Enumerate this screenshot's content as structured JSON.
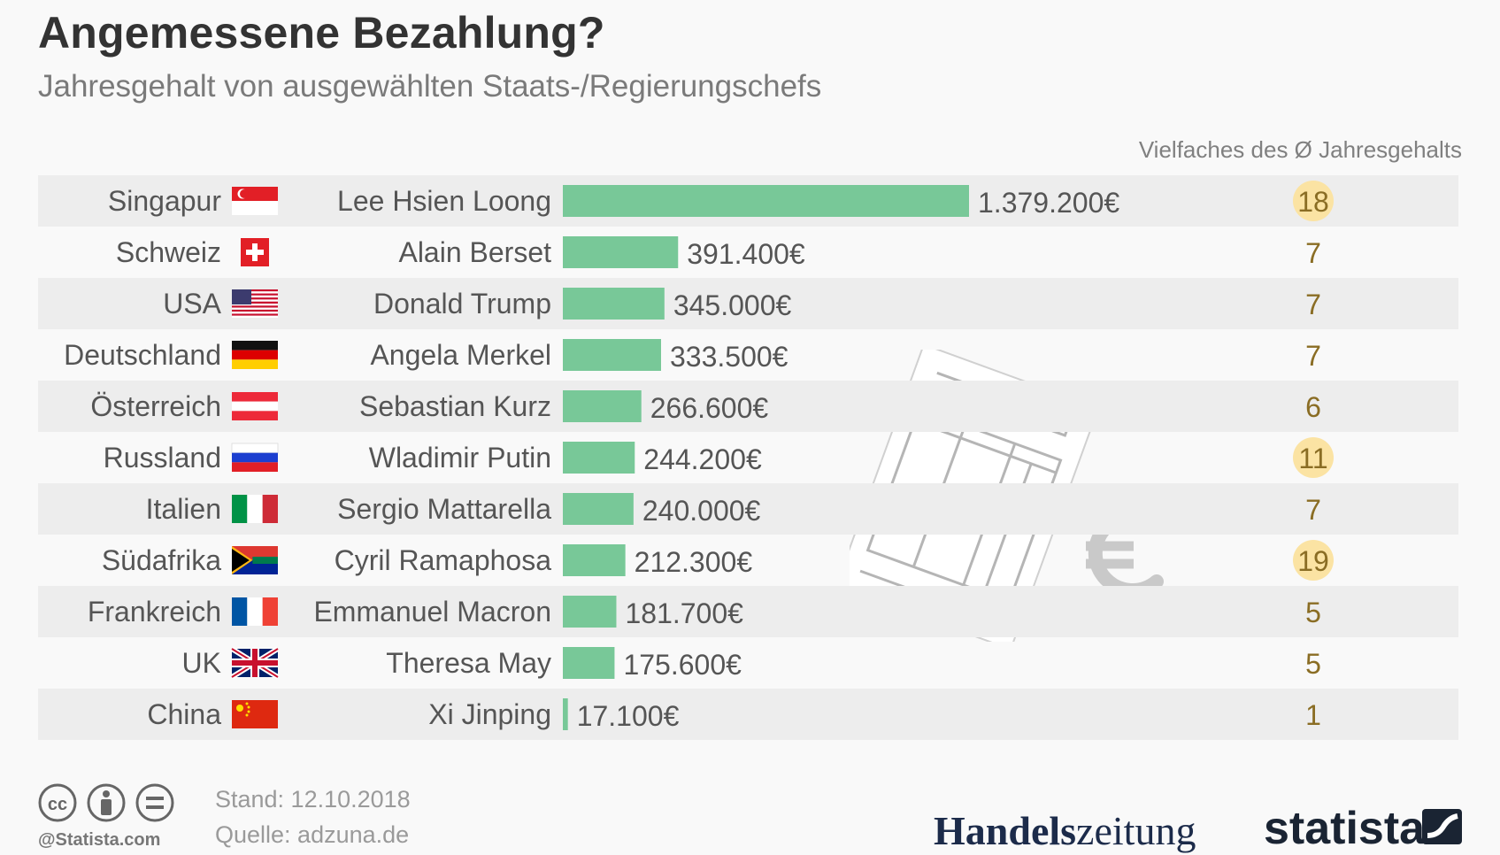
{
  "header": {
    "title": "Angemessene Bezahlung?",
    "subtitle": "Jahresgehalt von ausgewählten Staats-/Regierungschefs",
    "multiple_column_label": "Vielfaches des Ø Jahresgehalts"
  },
  "footer": {
    "stand": "Stand: 12.10.2018",
    "quelle": "Quelle: adzuna.de",
    "handle": "@Statista.com",
    "logo_handelszeitung_bold": "Handels",
    "logo_handelszeitung_light": "zeitung",
    "logo_statista": "statista"
  },
  "icons": {
    "license": [
      "cc-icon",
      "attribution-icon",
      "no-derivatives-icon"
    ],
    "decoration": [
      "invoice-document-icon",
      "euro-icon"
    ],
    "flags": [
      "singapore-flag-icon",
      "switzerland-flag-icon",
      "usa-flag-icon",
      "germany-flag-icon",
      "austria-flag-icon",
      "russia-flag-icon",
      "italy-flag-icon",
      "south-africa-flag-icon",
      "france-flag-icon",
      "uk-flag-icon",
      "china-flag-icon"
    ]
  },
  "colors": {
    "bar": "#78c898",
    "badge_highlight": "#fbe3a3",
    "multiple_text": "#8a6d24",
    "row_shade": "#ededed"
  },
  "chart_data": {
    "type": "bar",
    "orientation": "horizontal",
    "title": "Angemessene Bezahlung?",
    "subtitle": "Jahresgehalt von ausgewählten Staats-/Regierungschefs",
    "unit": "€",
    "countries": [
      "Singapur",
      "Schweiz",
      "USA",
      "Deutschland",
      "Österreich",
      "Russland",
      "Italien",
      "Südafrika",
      "Frankreich",
      "UK",
      "China"
    ],
    "categories": [
      "Lee Hsien Loong",
      "Alain Berset",
      "Donald Trump",
      "Angela Merkel",
      "Sebastian Kurz",
      "Wladimir Putin",
      "Sergio Mattarella",
      "Cyril Ramaphosa",
      "Emmanuel Macron",
      "Theresa May",
      "Xi Jinping"
    ],
    "values": [
      1379200,
      391400,
      345000,
      333500,
      266600,
      244200,
      240000,
      212300,
      181700,
      175600,
      17100
    ],
    "value_labels": [
      "1.379.200€",
      "391.400€",
      "345.000€",
      "333.500€",
      "266.600€",
      "244.200€",
      "240.000€",
      "212.300€",
      "181.700€",
      "175.600€",
      "17.100€"
    ],
    "multiples": [
      18,
      7,
      7,
      7,
      6,
      11,
      7,
      19,
      5,
      5,
      1
    ],
    "multiples_highlighted": [
      true,
      false,
      false,
      false,
      false,
      true,
      false,
      true,
      false,
      false,
      false
    ],
    "multiples_label": "Vielfaches des Ø Jahresgehalts",
    "xlim": [
      0,
      1379200
    ],
    "grid": false,
    "legend": "none"
  }
}
